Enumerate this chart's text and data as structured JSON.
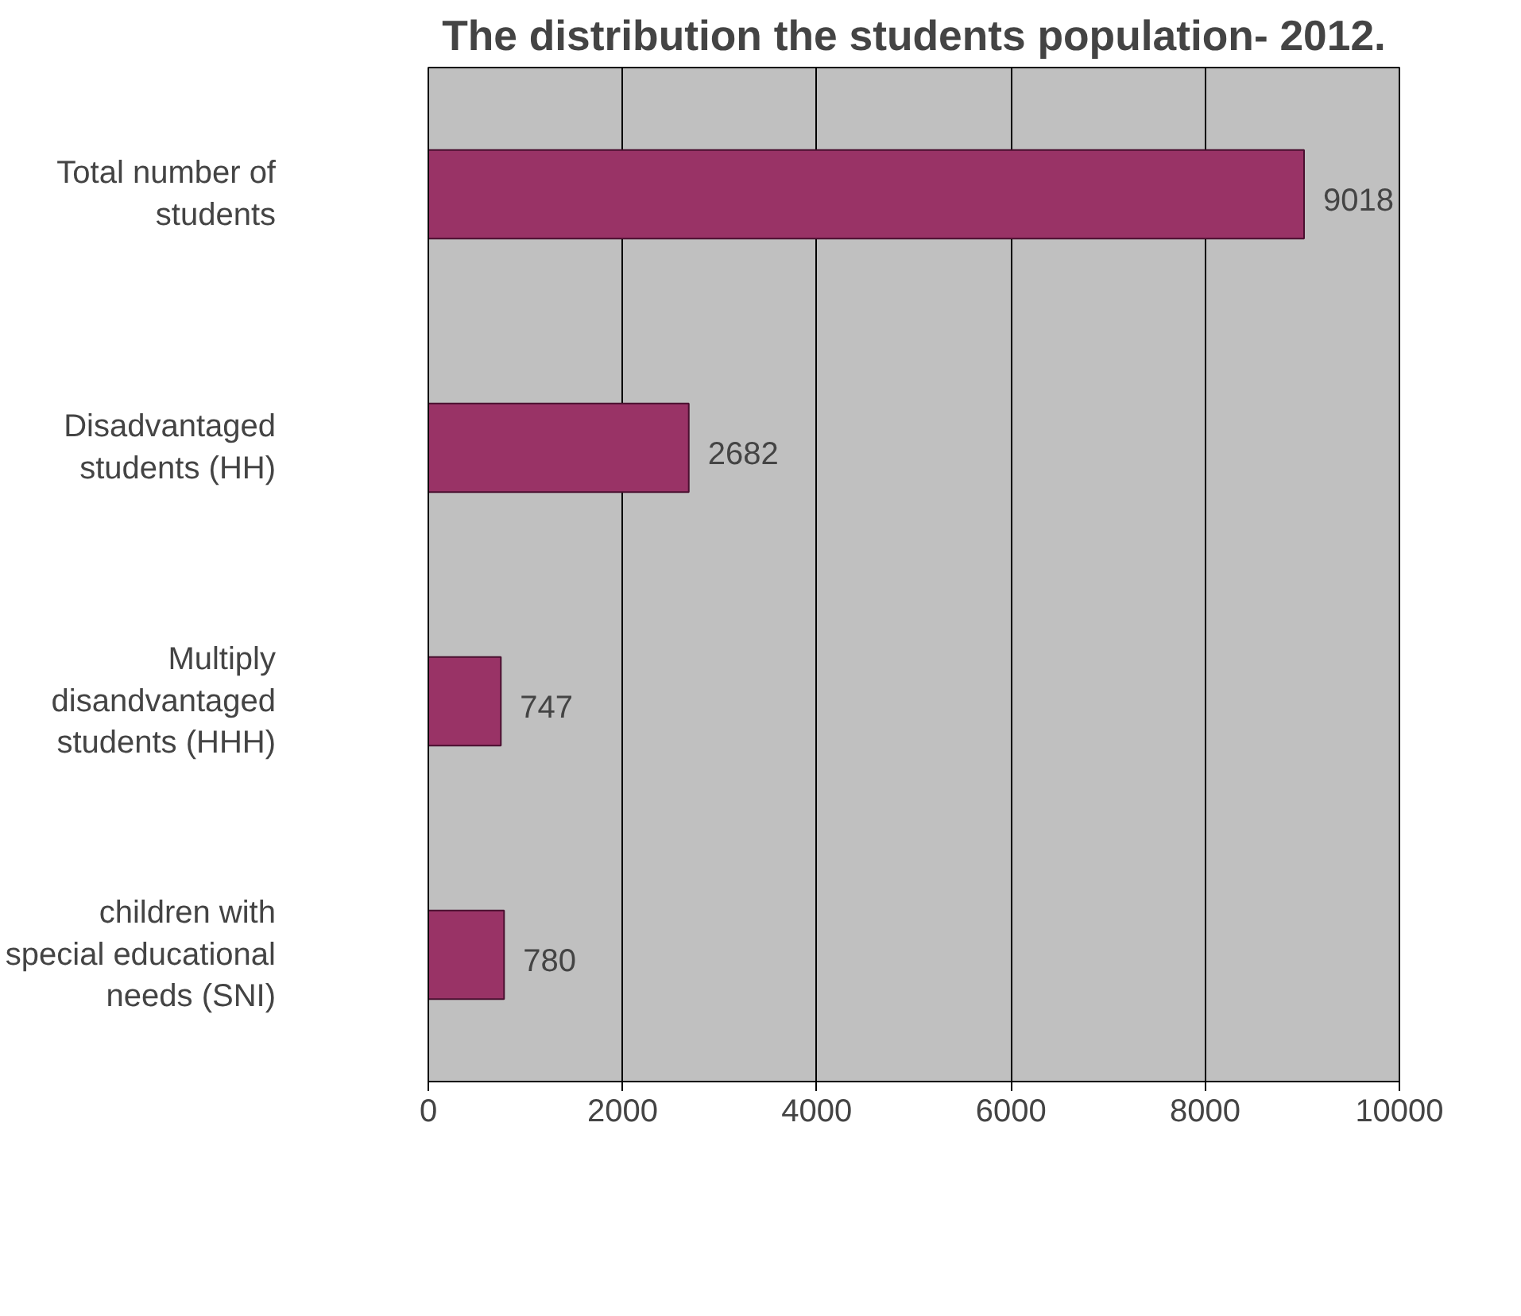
{
  "chart_data": {
    "type": "bar",
    "orientation": "horizontal",
    "title": "The distribution the students population- 2012.",
    "categories": [
      "Total number of students",
      "Disadvantaged students (HH)",
      "Multiply disandvantaged students (HHH)",
      "children with special educational needs (SNI)"
    ],
    "values": [
      9018,
      2682,
      747,
      780
    ],
    "color": "#993366",
    "data_labels": true,
    "xlim": [
      0,
      10000
    ],
    "xticks": [
      0,
      2000,
      4000,
      6000,
      8000,
      10000
    ],
    "grid": "x"
  }
}
